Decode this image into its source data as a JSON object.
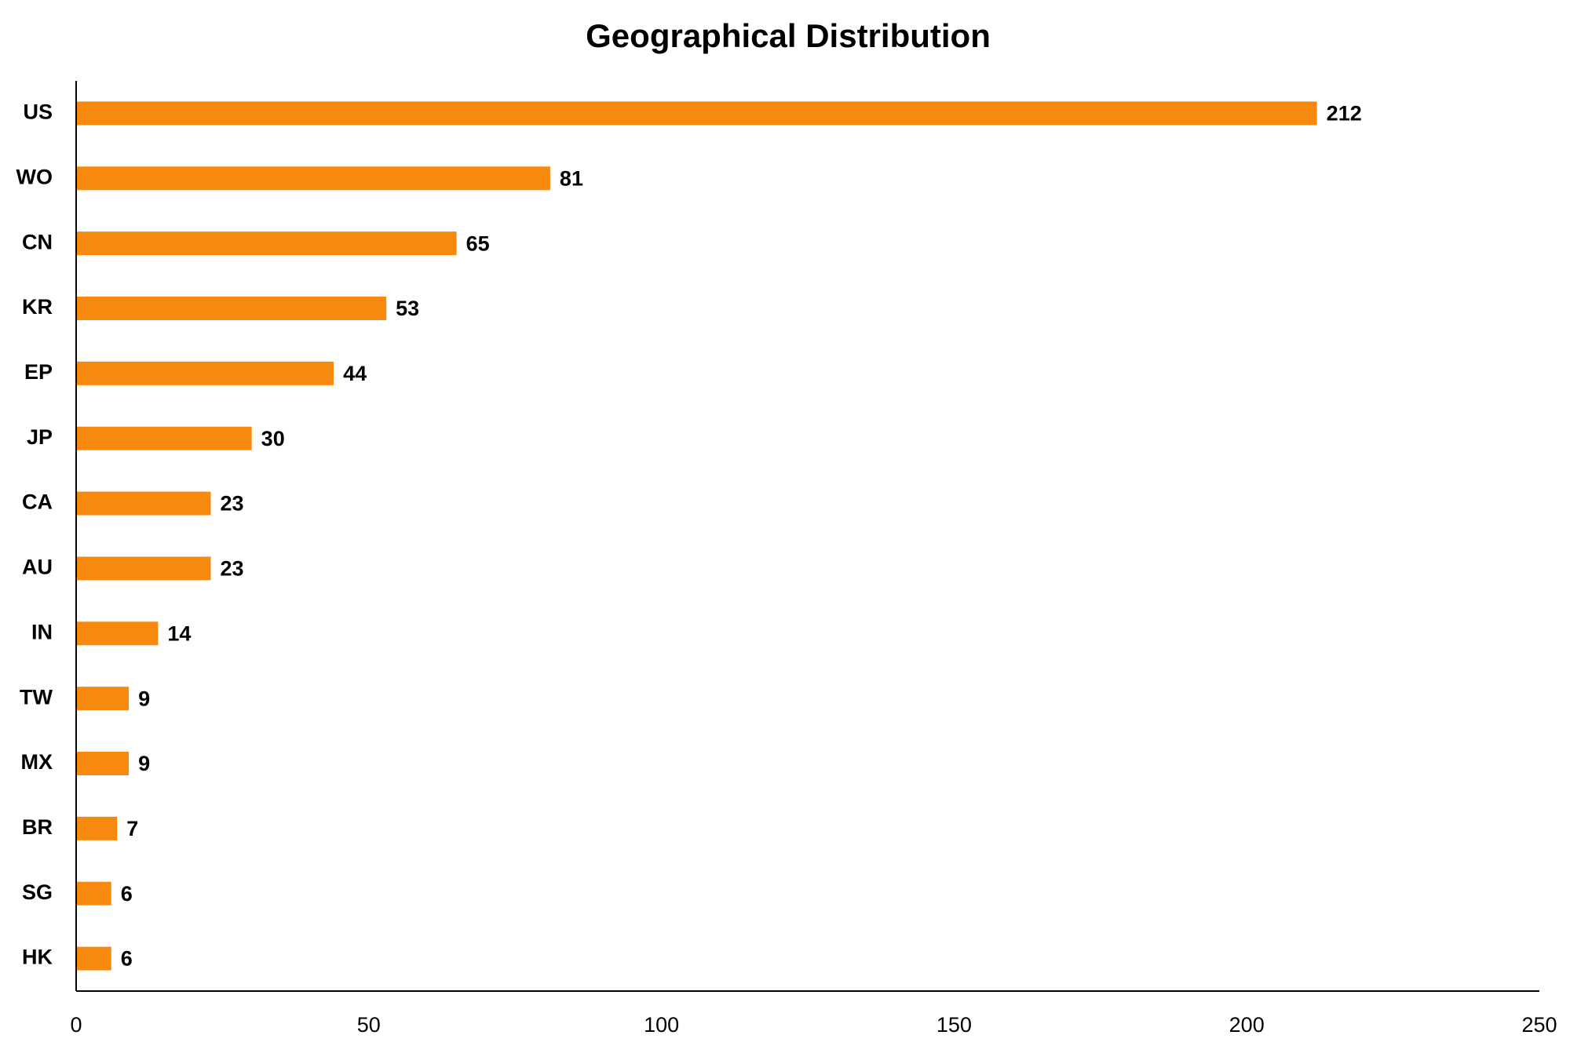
{
  "chart_data": {
    "type": "barh",
    "title": "Geographical Distribution",
    "categories": [
      "US",
      "WO",
      "CN",
      "KR",
      "EP",
      "JP",
      "CA",
      "AU",
      "IN",
      "TW",
      "MX",
      "BR",
      "SG",
      "HK"
    ],
    "values": [
      212,
      81,
      65,
      53,
      44,
      30,
      23,
      23,
      14,
      9,
      9,
      7,
      6,
      6
    ],
    "color": "#f7890f",
    "xlim": [
      0,
      250
    ],
    "xticks": [
      0,
      50,
      100,
      150,
      200,
      250
    ],
    "grid": false
  }
}
